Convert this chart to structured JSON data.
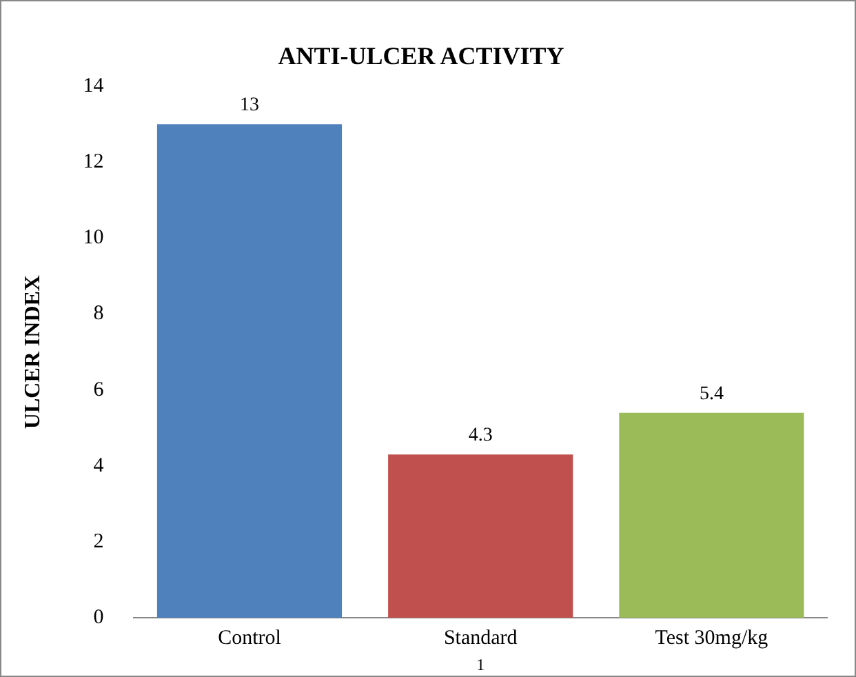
{
  "chart_data": {
    "type": "bar",
    "title": "ANTI-ULCER ACTIVITY",
    "ylabel": "ULCER INDEX",
    "categories": [
      "Control",
      "Standard",
      "Test 30mg/kg"
    ],
    "values": [
      13,
      4.3,
      5.4
    ],
    "colors": [
      "#4f81bd",
      "#c0504d",
      "#9bbb59"
    ],
    "ylim": [
      0,
      14
    ],
    "yticks": [
      0,
      2,
      4,
      6,
      8,
      10,
      12,
      14
    ],
    "grid": false,
    "legend": false,
    "data_labels": true,
    "annotations": [
      "1"
    ]
  }
}
